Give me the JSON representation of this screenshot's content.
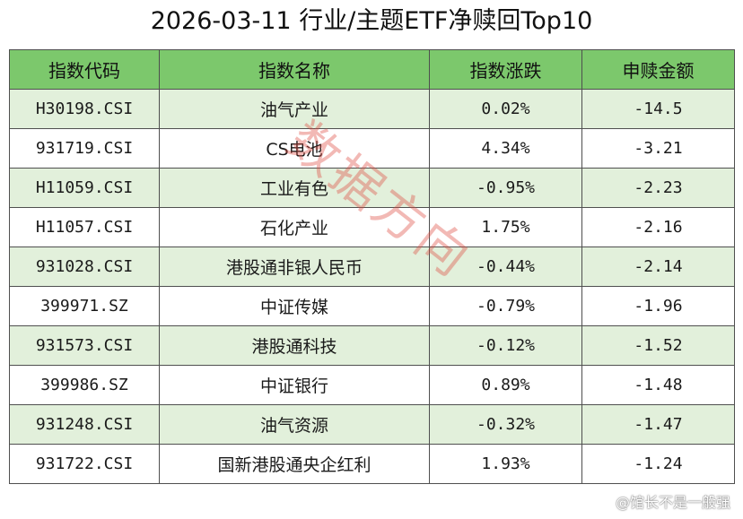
{
  "title": "2026-03-11 行业/主题ETF净赎回Top10",
  "table": {
    "headers": [
      "指数代码",
      "指数名称",
      "指数涨跌",
      "申赎金额"
    ],
    "rows": [
      {
        "code": "H30198.CSI",
        "name": "油气产业",
        "change": "0.02%",
        "amount": "-14.5"
      },
      {
        "code": "931719.CSI",
        "name": "CS电池",
        "change": "4.34%",
        "amount": "-3.21"
      },
      {
        "code": "H11059.CSI",
        "name": "工业有色",
        "change": "-0.95%",
        "amount": "-2.23"
      },
      {
        "code": "H11057.CSI",
        "name": "石化产业",
        "change": "1.75%",
        "amount": "-2.16"
      },
      {
        "code": "931028.CSI",
        "name": "港股通非银人民币",
        "change": "-0.44%",
        "amount": "-2.14"
      },
      {
        "code": "399971.SZ",
        "name": "中证传媒",
        "change": "-0.79%",
        "amount": "-1.96"
      },
      {
        "code": "931573.CSI",
        "name": "港股通科技",
        "change": "-0.12%",
        "amount": "-1.52"
      },
      {
        "code": "399986.SZ",
        "name": "中证银行",
        "change": "0.89%",
        "amount": "-1.48"
      },
      {
        "code": "931248.CSI",
        "name": "油气资源",
        "change": "-0.32%",
        "amount": "-1.47"
      },
      {
        "code": "931722.CSI",
        "name": "国新港股通央企红利",
        "change": "1.93%",
        "amount": "-1.24"
      }
    ]
  },
  "watermark": "数据方向",
  "credit": "@馆长不是一般强",
  "colors": {
    "header_bg": "#7cc86c",
    "stripe_bg": "#e2f0db",
    "border": "#4f4f4f",
    "watermark": "#dc463c"
  }
}
